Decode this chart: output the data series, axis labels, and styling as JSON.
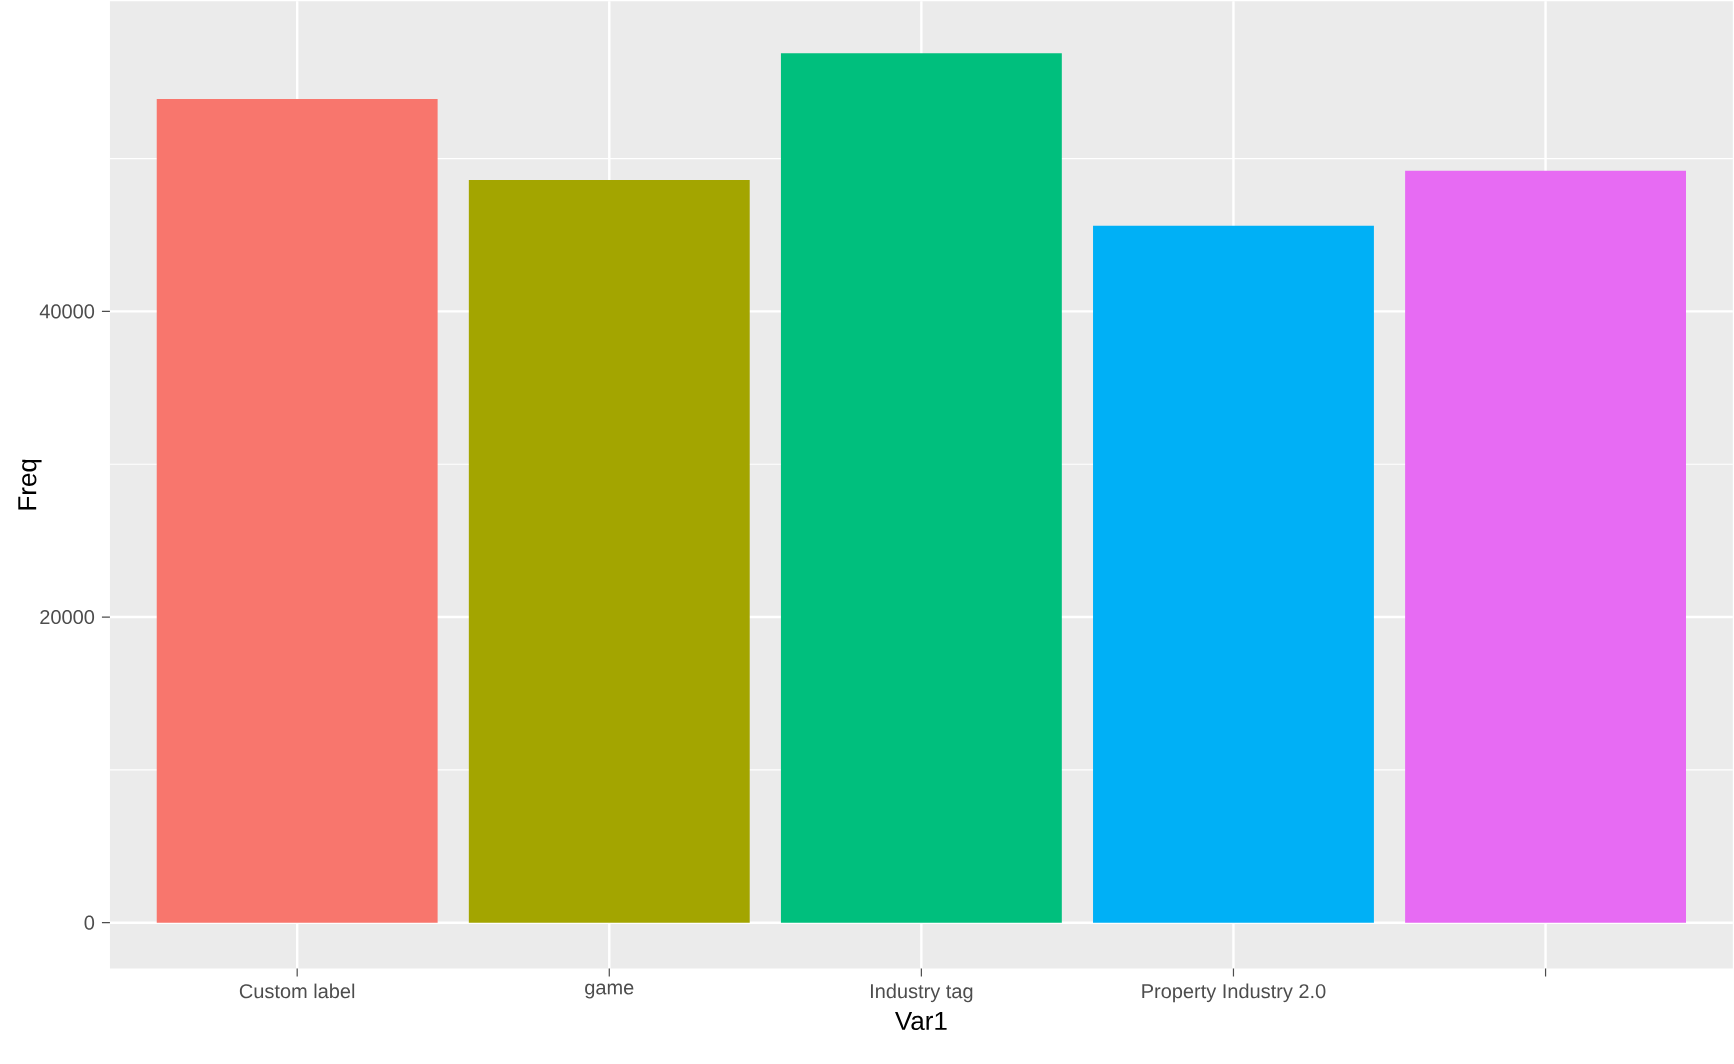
{
  "chart_data": {
    "type": "bar",
    "xlabel": "Var1",
    "ylabel": "Freq",
    "categories": [
      "Custom label",
      "game",
      "Industry tag",
      "Property Industry 2.0",
      null
    ],
    "values": [
      53900,
      48600,
      56900,
      45600,
      49200
    ],
    "colors": [
      "#f8766d",
      "#a3a500",
      "#00bf7d",
      "#00b0f6",
      "#e76bf3"
    ],
    "ylim": [
      -3000,
      60300
    ],
    "yticks": [
      0,
      20000,
      40000
    ],
    "grid": true
  }
}
